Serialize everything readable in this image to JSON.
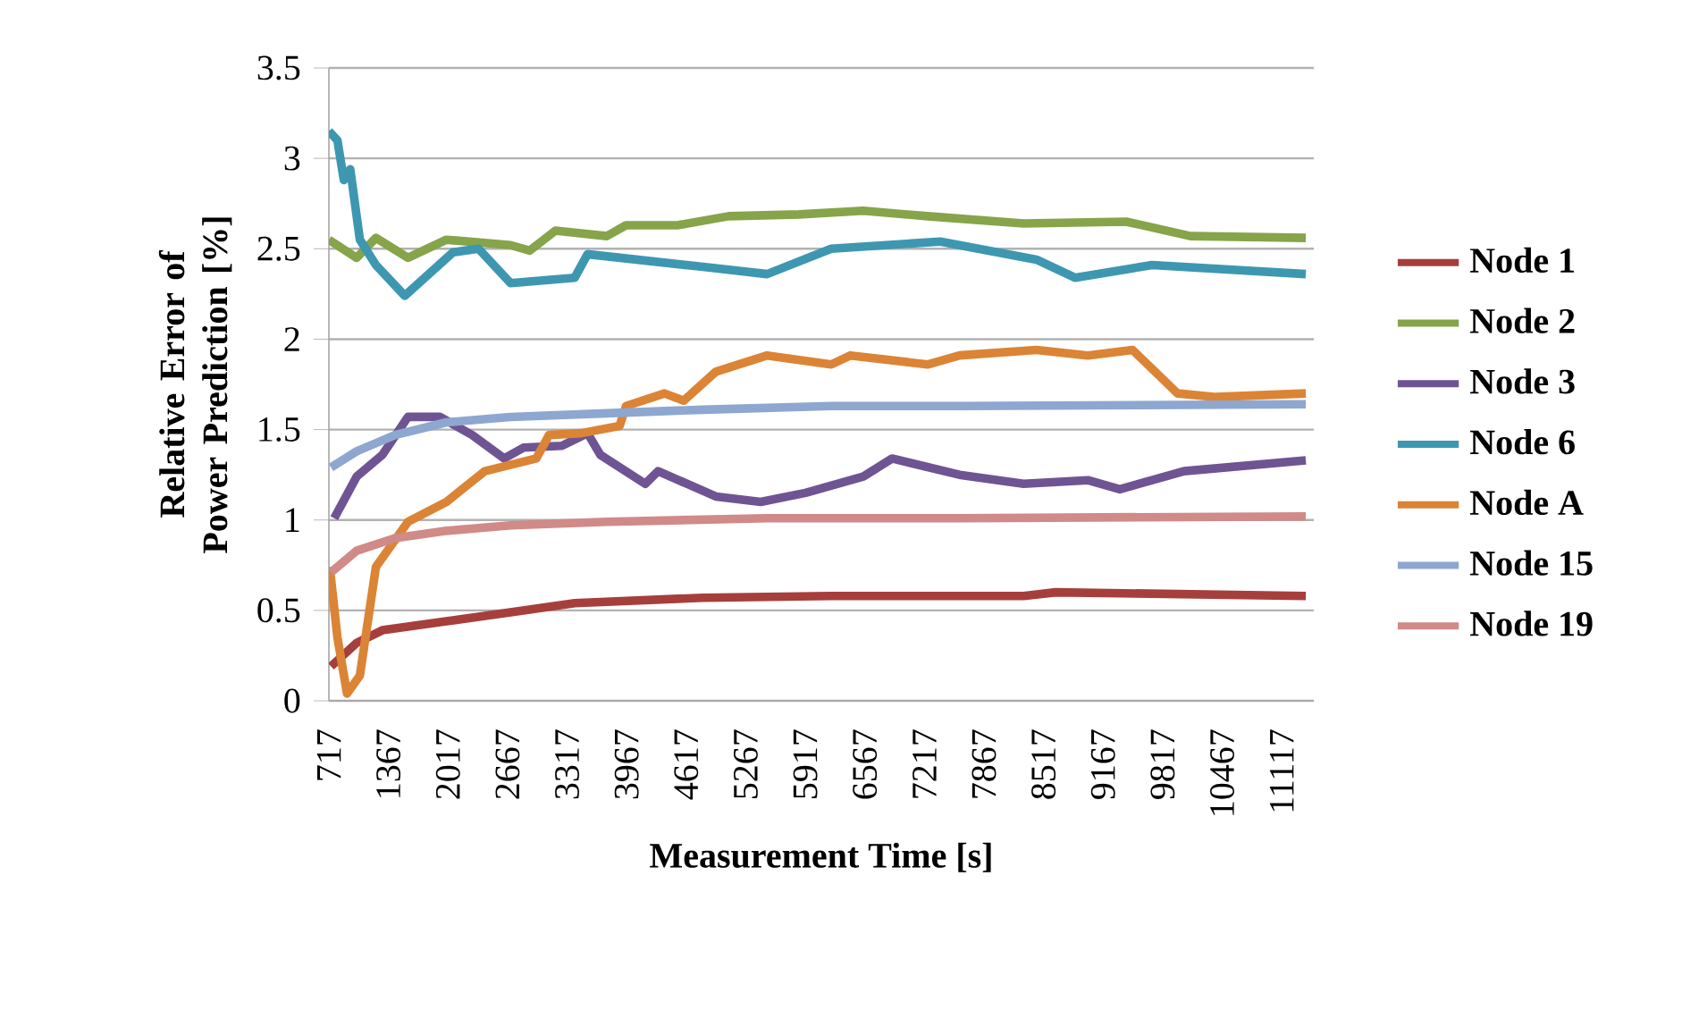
{
  "chart_data": {
    "type": "line",
    "xlabel": "Measurement Time [s]",
    "ylabel": "Relative Error of Power Prediction [%]",
    "xlim": [
      717,
      11467
    ],
    "xticks": [
      717,
      1367,
      2017,
      2667,
      3317,
      3967,
      4617,
      5267,
      5917,
      6567,
      7217,
      7867,
      8517,
      9167,
      9817,
      10467,
      11117
    ],
    "ylim": [
      0,
      3.5
    ],
    "yticks": [
      0,
      0.5,
      1,
      1.5,
      2,
      2.5,
      3,
      3.5
    ],
    "grid": "y",
    "legend": "right",
    "series": [
      {
        "name": "Node 1",
        "color": "#a63f3c",
        "x": [
          740,
          1020,
          1300,
          2000,
          2700,
          3400,
          4800,
          6200,
          8300,
          8650,
          11380
        ],
        "values": [
          0.19,
          0.32,
          0.39,
          0.44,
          0.49,
          0.54,
          0.57,
          0.58,
          0.58,
          0.6,
          0.58
        ]
      },
      {
        "name": "Node 2",
        "color": "#86a44a",
        "x": [
          717,
          1020,
          1230,
          1580,
          2000,
          2700,
          2910,
          3190,
          3750,
          3960,
          4520,
          5080,
          5850,
          6550,
          7250,
          8300,
          9420,
          10120,
          11380
        ],
        "values": [
          2.55,
          2.45,
          2.56,
          2.45,
          2.55,
          2.52,
          2.49,
          2.6,
          2.57,
          2.63,
          2.63,
          2.68,
          2.69,
          2.71,
          2.68,
          2.64,
          2.65,
          2.57,
          2.56
        ]
      },
      {
        "name": "Node 3",
        "color": "#6f5493",
        "x": [
          775,
          1020,
          1300,
          1580,
          1930,
          2280,
          2630,
          2840,
          3260,
          3540,
          3680,
          4170,
          4310,
          4940,
          5430,
          5920,
          6550,
          6865,
          7600,
          8300,
          9000,
          9350,
          10050,
          11380
        ],
        "values": [
          1.01,
          1.24,
          1.36,
          1.57,
          1.57,
          1.47,
          1.34,
          1.4,
          1.41,
          1.48,
          1.36,
          1.2,
          1.27,
          1.13,
          1.1,
          1.15,
          1.24,
          1.34,
          1.25,
          1.2,
          1.22,
          1.17,
          1.27,
          1.33
        ]
      },
      {
        "name": "Node 6",
        "color": "#3e97b1",
        "x": [
          717,
          810,
          880,
          950,
          1055,
          1230,
          1545,
          2070,
          2350,
          2700,
          3400,
          3540,
          4800,
          5500,
          6200,
          7390,
          8440,
          8860,
          9700,
          11380
        ],
        "values": [
          3.15,
          3.1,
          2.88,
          2.94,
          2.55,
          2.41,
          2.24,
          2.48,
          2.5,
          2.31,
          2.34,
          2.47,
          2.4,
          2.36,
          2.5,
          2.54,
          2.44,
          2.34,
          2.41,
          2.36
        ]
      },
      {
        "name": "Node A",
        "color": "#db8436",
        "x": [
          726,
          810,
          915,
          1055,
          1230,
          1580,
          2000,
          2420,
          2980,
          3120,
          3470,
          3890,
          3960,
          4380,
          4590,
          4940,
          5500,
          6200,
          6410,
          7250,
          7600,
          8440,
          9000,
          9490,
          9980,
          10400,
          11380
        ],
        "values": [
          0.74,
          0.35,
          0.04,
          0.14,
          0.74,
          0.99,
          1.1,
          1.27,
          1.34,
          1.47,
          1.48,
          1.52,
          1.63,
          1.7,
          1.66,
          1.82,
          1.91,
          1.86,
          1.91,
          1.86,
          1.91,
          1.94,
          1.91,
          1.94,
          1.7,
          1.68,
          1.7
        ]
      },
      {
        "name": "Node 15",
        "color": "#8ea7d0",
        "x": [
          740,
          1020,
          1440,
          2000,
          2700,
          3750,
          4800,
          6200,
          7600,
          11380
        ],
        "values": [
          1.29,
          1.38,
          1.47,
          1.54,
          1.57,
          1.59,
          1.61,
          1.63,
          1.63,
          1.64
        ]
      },
      {
        "name": "Node 19",
        "color": "#d08a88",
        "x": [
          740,
          1020,
          1440,
          2000,
          2700,
          3750,
          5500,
          7600,
          11380
        ],
        "values": [
          0.71,
          0.83,
          0.9,
          0.94,
          0.97,
          0.99,
          1.01,
          1.01,
          1.02
        ]
      }
    ]
  }
}
